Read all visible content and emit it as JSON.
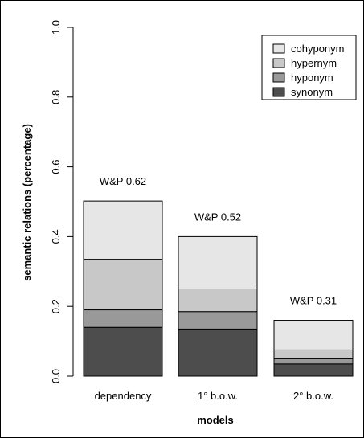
{
  "chart_data": {
    "type": "bar",
    "stacked": true,
    "xlabel": "models",
    "ylabel": "semantic relations (percentage)",
    "ylim": [
      0,
      1.0
    ],
    "yticks": [
      "0.0",
      "0.2",
      "0.4",
      "0.6",
      "0.8",
      "1.0"
    ],
    "categories": [
      "dependency",
      "1° b.o.w.",
      "2° b.o.w."
    ],
    "bar_labels": [
      "W&P 0.62",
      "W&P 0.52",
      "W&P 0.31"
    ],
    "series": [
      {
        "name": "synonym",
        "values": [
          0.14,
          0.135,
          0.035
        ],
        "color": "#4d4d4d"
      },
      {
        "name": "hyponym",
        "values": [
          0.05,
          0.05,
          0.015
        ],
        "color": "#999999"
      },
      {
        "name": "hypernym",
        "values": [
          0.145,
          0.065,
          0.025
        ],
        "color": "#c8c8c8"
      },
      {
        "name": "cohyponym",
        "values": [
          0.167,
          0.15,
          0.085
        ],
        "color": "#e6e6e6"
      }
    ],
    "legend": [
      "cohyponym",
      "hypernym",
      "hyponym",
      "synonym"
    ],
    "legend_position": "top-right",
    "grid": false
  }
}
